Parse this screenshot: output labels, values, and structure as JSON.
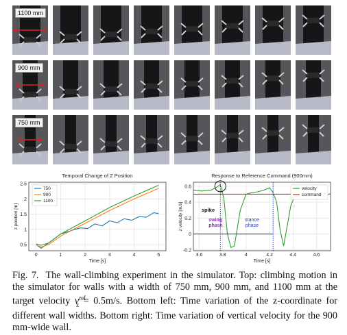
{
  "strips": [
    {
      "label": "1100 mm",
      "wall": "wide"
    },
    {
      "label": "900 mm",
      "wall": "mid"
    },
    {
      "label": "750 mm",
      "wall": "narrow"
    }
  ],
  "chart_data": [
    {
      "type": "line",
      "title": "Temporal Change of Z Position",
      "xlabel": "Time [s]",
      "ylabel": "z position [m]",
      "xlim": [
        -0.3,
        5.3
      ],
      "ylim": [
        0.3,
        2.55
      ],
      "xticks": [
        0,
        1,
        2,
        3,
        4,
        5
      ],
      "yticks": [
        0.5,
        1.0,
        1.5,
        2.0,
        2.5
      ],
      "legend": "top-left",
      "grid": true,
      "series": [
        {
          "name": "750",
          "color": "#1f77b4",
          "x": [
            0,
            0.2,
            0.5,
            1.0,
            1.5,
            1.8,
            2.1,
            2.4,
            2.7,
            3.0,
            3.3,
            3.6,
            3.9,
            4.2,
            4.5,
            4.8,
            5.0
          ],
          "y": [
            0.5,
            0.38,
            0.55,
            0.85,
            0.98,
            1.05,
            1.03,
            1.18,
            1.12,
            1.28,
            1.22,
            1.35,
            1.3,
            1.42,
            1.4,
            1.55,
            1.52
          ]
        },
        {
          "name": "900",
          "color": "#ff7f0e",
          "x": [
            0,
            0.2,
            0.5,
            1.0,
            2.0,
            3.0,
            4.0,
            5.0
          ],
          "y": [
            0.5,
            0.42,
            0.5,
            0.78,
            1.2,
            1.62,
            2.0,
            2.35
          ]
        },
        {
          "name": "1100",
          "color": "#2ca02c",
          "x": [
            0,
            0.2,
            0.5,
            1.0,
            2.0,
            3.0,
            4.0,
            5.0
          ],
          "y": [
            0.52,
            0.48,
            0.55,
            0.85,
            1.28,
            1.72,
            2.1,
            2.45
          ]
        }
      ]
    },
    {
      "type": "line",
      "title": "Response to Reference Command (900mm)",
      "xlabel": "Time [s]",
      "ylabel": "z velocity [m/s]",
      "xlim": [
        3.55,
        4.72
      ],
      "ylim": [
        -0.21,
        0.65
      ],
      "xticks": [
        3.6,
        3.8,
        4.0,
        4.2,
        4.4,
        4.6
      ],
      "yticks": [
        -0.2,
        0.0,
        0.2,
        0.4,
        0.6
      ],
      "legend": "top-right",
      "grid": true,
      "series": [
        {
          "name": "velocity",
          "color": "#2ca02c",
          "x": [
            3.55,
            3.62,
            3.7,
            3.74,
            3.78,
            3.81,
            3.84,
            3.87,
            3.9,
            3.95,
            4.0,
            4.05,
            4.1,
            4.15,
            4.2,
            4.23,
            4.26,
            4.29,
            4.32,
            4.35,
            4.38,
            4.42,
            4.48,
            4.52,
            4.58,
            4.62,
            4.66
          ],
          "y": [
            0.55,
            0.54,
            0.55,
            0.58,
            0.62,
            0.45,
            0.0,
            -0.17,
            -0.15,
            0.3,
            0.5,
            0.52,
            0.53,
            0.55,
            0.58,
            0.52,
            0.4,
            0.05,
            -0.15,
            0.1,
            0.35,
            0.5,
            0.52,
            0.53,
            0.55,
            0.54,
            0.56
          ]
        },
        {
          "name": "command",
          "color": "#d62728",
          "x": [
            3.55,
            4.72
          ],
          "y": [
            0.5,
            0.5
          ]
        }
      ],
      "annotations": {
        "spike": "spike",
        "swing": "swing\nphase",
        "stance": "stance\nphase"
      }
    }
  ],
  "caption": {
    "fig": "Fig. 7.",
    "text_1": "The wall-climbing experiment in the simulator. Top: climbing motion in the simulator for walls with a width of 750 mm, 900 mm, and 1100 mm at the target velocity ",
    "v": "v",
    "sup": "ref",
    "sub": "z",
    "text_2": " = 0.5m/s. Bottom left: Time variation of the z-coordinate for different wall widths. Bottom right: Time variation of vertical velocity for the 900 mm-wide wall."
  }
}
